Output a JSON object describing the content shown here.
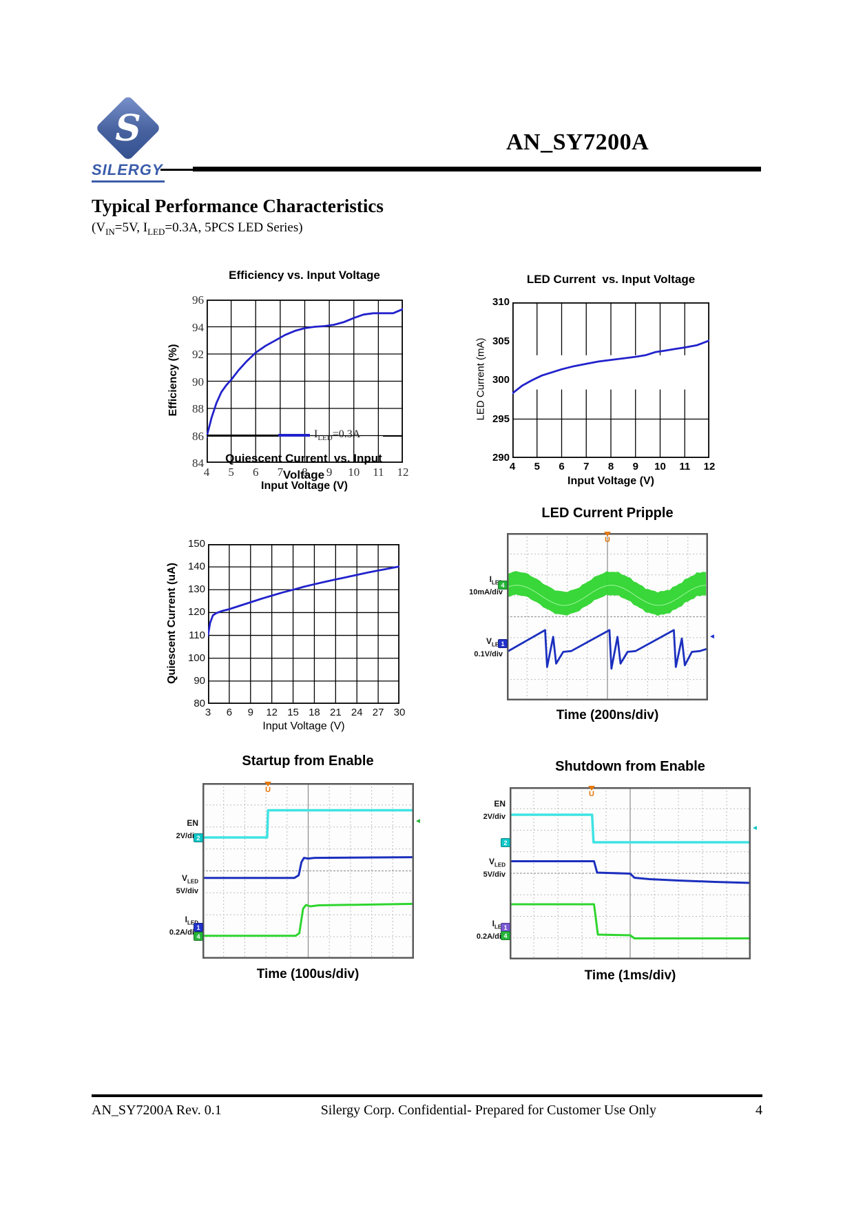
{
  "header": {
    "brand": "SILERGY",
    "doc_id": "AN_SY7200A"
  },
  "section": {
    "title": "Typical Performance Characteristics",
    "conditions": {
      "p1": "(V",
      "s1": "IN",
      "p2": "=5V, I",
      "s2": "LED",
      "p3": "=0.3A, 5PCS LED Series)"
    }
  },
  "footer": {
    "left": "AN_SY7200A Rev. 0.1",
    "center": "Silergy Corp. Confidential- Prepared for Customer Use Only",
    "page": "4"
  },
  "chart_data": [
    {
      "id": "efficiency",
      "type": "line",
      "title": "Efficiency vs. Input Voltage",
      "xlabel": "Input Voltage (V)",
      "ylabel": "Efficiency (%)",
      "xlim": [
        4,
        12
      ],
      "ylim": [
        84,
        96
      ],
      "xticks": [
        4,
        5,
        6,
        7,
        8,
        9,
        10,
        11,
        12
      ],
      "yticks": [
        96,
        94,
        92,
        90,
        88,
        86,
        84
      ],
      "tick_class": "f-serif",
      "line_color": "#2222cc",
      "legend": {
        "pre": "I",
        "sub": "LED",
        "post": "=0.3A"
      },
      "x": [
        4,
        4.2,
        4.4,
        4.6,
        4.8,
        5,
        5.3,
        5.6,
        6,
        6.4,
        6.8,
        7.2,
        7.6,
        8,
        8.4,
        8.8,
        9.2,
        9.6,
        10,
        10.4,
        10.8,
        11.2,
        11.6,
        12
      ],
      "y": [
        85.9,
        87.3,
        88.4,
        89.2,
        89.7,
        90.1,
        90.8,
        91.4,
        92.1,
        92.6,
        93.0,
        93.4,
        93.7,
        93.9,
        94.0,
        94.05,
        94.15,
        94.35,
        94.65,
        94.9,
        95.0,
        95.0,
        95.0,
        95.3
      ]
    },
    {
      "id": "led_current",
      "type": "line",
      "title": "LED Current  vs. Input Voltage",
      "xlabel": "Input Voltage (V)",
      "ylabel": "LED Current (mA)",
      "xlim": [
        4,
        12
      ],
      "ylim": [
        290,
        310
      ],
      "xticks": [
        4,
        5,
        6,
        7,
        8,
        9,
        10,
        11,
        12
      ],
      "yticks": [
        310,
        305,
        300,
        295,
        290
      ],
      "ylines": [
        295
      ],
      "grid_break": [
        34,
        56
      ],
      "tick_class": "f-sansb",
      "line_color": "#2222cc",
      "x": [
        4,
        4.4,
        4.8,
        5.2,
        5.6,
        6,
        6.5,
        7,
        7.5,
        8,
        8.5,
        9,
        9.4,
        9.8,
        10.2,
        10.6,
        11,
        11.5,
        12
      ],
      "y": [
        298.3,
        299.3,
        300.0,
        300.6,
        301.0,
        301.4,
        301.8,
        302.1,
        302.4,
        302.6,
        302.8,
        303.0,
        303.2,
        303.6,
        303.8,
        304.0,
        304.2,
        304.5,
        305.1
      ]
    },
    {
      "id": "quiescent",
      "type": "line",
      "title": "Quiescent Current  vs. Input",
      "title_line2": "Voltage",
      "xlabel": "Input Voltage (V)",
      "ylabel": "Quiescent Current (uA)",
      "xlim": [
        3,
        30
      ],
      "ylim": [
        80,
        150
      ],
      "xticks": [
        3,
        6,
        9,
        12,
        15,
        18,
        21,
        24,
        27,
        30
      ],
      "yticks": [
        150,
        140,
        130,
        120,
        110,
        100,
        90,
        80
      ],
      "tick_class": "f-sans",
      "line_color": "#2222cc",
      "x": [
        3,
        3.3,
        3.7,
        4.2,
        5,
        6,
        7.5,
        9,
        10.5,
        12,
        13.5,
        15,
        16.5,
        18,
        19.5,
        21,
        22.5,
        24,
        25.5,
        27,
        28.5,
        30
      ],
      "y": [
        110,
        115.5,
        118.8,
        119.8,
        120.7,
        121.5,
        123,
        124.5,
        126,
        127.4,
        128.8,
        130,
        131.3,
        132.4,
        133.5,
        134.5,
        135.5,
        136.5,
        137.5,
        138.4,
        139.3,
        140.2
      ]
    },
    {
      "id": "ripple",
      "type": "scope",
      "title": "LED Current Pripple",
      "time_label": "Time (200ns/div)",
      "trigger": {
        "x": 50,
        "label": "U"
      },
      "channels": [
        {
          "sym": "I",
          "sub": "LED",
          "scale": "10mA/div"
        },
        {
          "sym": "V",
          "sub": "LED",
          "scale": "0.1V/div"
        }
      ],
      "markers": [
        {
          "t": "4",
          "c": "#26b53a",
          "y": 31
        },
        {
          "t": "1",
          "c": "#2233cc",
          "y": 66
        }
      ],
      "right_marker": {
        "c": "#2233cc",
        "y": 62
      },
      "traces": [
        {
          "kind": "band",
          "color": "#2ed52e",
          "center": 36,
          "half": 7,
          "wobble": 6,
          "period": 47,
          "phase": 5
        },
        {
          "kind": "line",
          "color": "#1b2fbe",
          "width": 2.8,
          "points": [
            [
              0,
              71
            ],
            [
              19,
              58
            ],
            [
              20,
              80
            ],
            [
              23,
              62
            ],
            [
              24.5,
              78
            ],
            [
              28,
              71
            ],
            [
              32,
              70.5
            ],
            [
              51,
              58
            ],
            [
              52,
              81
            ],
            [
              55,
              62
            ],
            [
              56.5,
              78
            ],
            [
              60,
              71
            ],
            [
              64,
              70.5
            ],
            [
              83,
              58
            ],
            [
              84,
              80
            ],
            [
              87,
              63
            ],
            [
              88.5,
              79
            ],
            [
              92,
              71
            ],
            [
              96,
              70.5
            ],
            [
              100,
              69
            ]
          ]
        }
      ]
    },
    {
      "id": "startup",
      "type": "scope",
      "title": "Startup from Enable",
      "time_label": "Time (100us/div)",
      "trigger": {
        "x": 31,
        "label": "U"
      },
      "channels": [
        {
          "sym": "EN",
          "sub": "",
          "scale": "2V/div"
        },
        {
          "sym": "V",
          "sub": "LED",
          "scale": "5V/div"
        },
        {
          "sym": "I",
          "sub": "LED",
          "scale": "0.2A/div"
        }
      ],
      "markers": [
        {
          "t": "2",
          "c": "#10c8c8",
          "y": 31
        },
        {
          "t": "1",
          "c": "#2233cc",
          "y": 82
        },
        {
          "t": "4",
          "c": "#26b53a",
          "y": 87
        }
      ],
      "right_marker": {
        "c": "#26b53a",
        "y": 22
      },
      "traces": [
        {
          "kind": "line",
          "color": "#3fe3e3",
          "width": 3.5,
          "points": [
            [
              0,
              31
            ],
            [
              30.6,
              31
            ],
            [
              31,
              15.5
            ],
            [
              100,
              15.5
            ]
          ]
        },
        {
          "kind": "line",
          "color": "#1b2fbe",
          "width": 3,
          "points": [
            [
              0,
              54
            ],
            [
              43.5,
              54
            ],
            [
              45.5,
              52.5
            ],
            [
              46.8,
              45
            ],
            [
              48,
              42.6
            ],
            [
              50,
              43
            ],
            [
              53,
              42.6
            ],
            [
              100,
              42.2
            ]
          ]
        },
        {
          "kind": "line",
          "color": "#2ed52e",
          "width": 3,
          "points": [
            [
              0,
              87
            ],
            [
              44,
              87
            ],
            [
              45.8,
              85.5
            ],
            [
              47.6,
              71.5
            ],
            [
              49,
              69.4
            ],
            [
              51,
              70.2
            ],
            [
              55,
              69.6
            ],
            [
              100,
              68.8
            ]
          ]
        }
      ]
    },
    {
      "id": "shutdown",
      "type": "scope",
      "title": "Shutdown from Enable",
      "time_label": "Time (1ms/div)",
      "trigger": {
        "x": 34,
        "label": "U"
      },
      "channels": [
        {
          "sym": "EN",
          "sub": "",
          "scale": "2V/div"
        },
        {
          "sym": "V",
          "sub": "LED",
          "scale": "5V/div"
        },
        {
          "sym": "I",
          "sub": "LED",
          "scale": "0.2A/div"
        }
      ],
      "markers": [
        {
          "t": "2",
          "c": "#10c8c8",
          "y": 32
        },
        {
          "t": "1",
          "c": "#7a5bd0",
          "y": 81
        },
        {
          "t": "4",
          "c": "#26b53a",
          "y": 86
        }
      ],
      "right_marker": {
        "c": "#10c8c8",
        "y": 24
      },
      "traces": [
        {
          "kind": "line",
          "color": "#3fe3e3",
          "width": 3.5,
          "points": [
            [
              0,
              16
            ],
            [
              34.2,
              16
            ],
            [
              34.8,
              32
            ],
            [
              100,
              32
            ]
          ]
        },
        {
          "kind": "line",
          "color": "#1b2fbe",
          "width": 3,
          "points": [
            [
              0,
              43
            ],
            [
              35,
              43
            ],
            [
              36.3,
              49.6
            ],
            [
              50,
              50.2
            ],
            [
              51.8,
              52.6
            ],
            [
              58,
              53.4
            ],
            [
              70,
              54.2
            ],
            [
              85,
              55
            ],
            [
              100,
              55.6
            ]
          ]
        },
        {
          "kind": "line",
          "color": "#2ed52e",
          "width": 3,
          "points": [
            [
              0,
              68
            ],
            [
              35,
              68
            ],
            [
              36.6,
              85.6
            ],
            [
              50,
              86
            ],
            [
              51.8,
              87.8
            ],
            [
              100,
              87.8
            ]
          ]
        }
      ]
    }
  ]
}
